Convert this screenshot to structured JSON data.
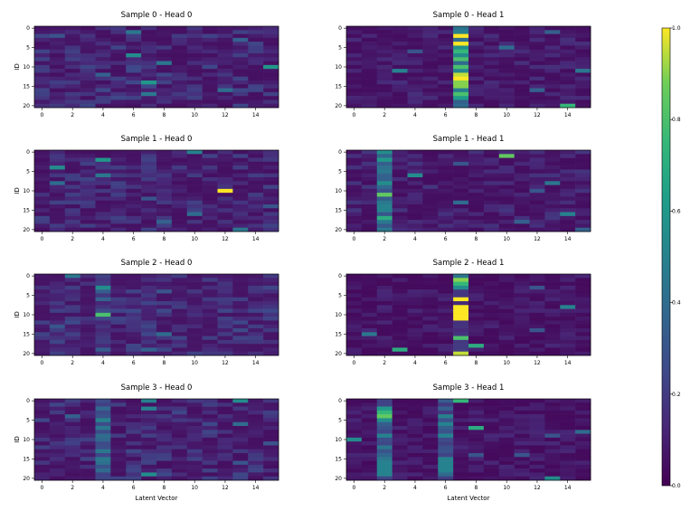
{
  "chart_data": {
    "type": "heatmap",
    "colormap": "viridis",
    "rows": 21,
    "cols": 16,
    "x_ticks": [
      0,
      2,
      4,
      6,
      8,
      10,
      12,
      14
    ],
    "y_ticks": [
      0,
      5,
      10,
      15,
      20
    ],
    "x_label": "Latent Vector",
    "y_label": "ID",
    "colorbar": {
      "min": 0.0,
      "max": 1.0,
      "ticks": [
        "0.0",
        "0.2",
        "0.4",
        "0.6",
        "0.8",
        "1.0"
      ]
    },
    "panels": [
      {
        "title": "Sample 0 - Head 0",
        "seed": 11,
        "base": 0.05,
        "noise": 0.2,
        "col_boost": {},
        "hot": [
          [
            1,
            6,
            0.45
          ],
          [
            3,
            13,
            0.35
          ],
          [
            7,
            6,
            0.55
          ],
          [
            9,
            8,
            0.45
          ],
          [
            10,
            15,
            0.6
          ],
          [
            14,
            7,
            0.6
          ],
          [
            17,
            7,
            0.45
          ],
          [
            16,
            12,
            0.4
          ],
          [
            2,
            1,
            0.3
          ],
          [
            12,
            4,
            0.35
          ]
        ]
      },
      {
        "title": "Sample 0 - Head 1",
        "seed": 23,
        "base": 0.04,
        "noise": 0.12,
        "col_boost": {
          "7": 0.55
        },
        "hot": [
          [
            2,
            7,
            1.0
          ],
          [
            4,
            7,
            1.0
          ],
          [
            6,
            7,
            0.75
          ],
          [
            8,
            7,
            0.8
          ],
          [
            10,
            7,
            0.8
          ],
          [
            12,
            7,
            0.95
          ],
          [
            13,
            7,
            1.0
          ],
          [
            14,
            7,
            0.9
          ],
          [
            15,
            7,
            0.9
          ],
          [
            17,
            7,
            0.8
          ],
          [
            20,
            14,
            0.75
          ],
          [
            11,
            3,
            0.5
          ],
          [
            1,
            13,
            0.35
          ],
          [
            5,
            10,
            0.4
          ],
          [
            11,
            15,
            0.45
          ],
          [
            16,
            12,
            0.35
          ],
          [
            6,
            4,
            0.3
          ]
        ]
      },
      {
        "title": "Sample 1 - Head 0",
        "seed": 37,
        "base": 0.05,
        "noise": 0.18,
        "col_boost": {},
        "hot": [
          [
            10,
            12,
            1.0
          ],
          [
            0,
            10,
            0.5
          ],
          [
            2,
            4,
            0.6
          ],
          [
            4,
            1,
            0.55
          ],
          [
            6,
            4,
            0.45
          ],
          [
            12,
            7,
            0.3
          ],
          [
            16,
            10,
            0.4
          ],
          [
            18,
            8,
            0.35
          ],
          [
            20,
            13,
            0.45
          ],
          [
            8,
            1,
            0.4
          ],
          [
            14,
            15,
            0.3
          ]
        ]
      },
      {
        "title": "Sample 1 - Head 1",
        "seed": 41,
        "base": 0.04,
        "noise": 0.14,
        "col_boost": {
          "2": 0.35
        },
        "hot": [
          [
            0,
            2,
            0.55
          ],
          [
            2,
            2,
            0.6
          ],
          [
            5,
            2,
            0.45
          ],
          [
            8,
            2,
            0.55
          ],
          [
            11,
            2,
            0.85
          ],
          [
            14,
            2,
            0.5
          ],
          [
            17,
            2,
            0.7
          ],
          [
            20,
            2,
            0.45
          ],
          [
            1,
            10,
            0.85
          ],
          [
            6,
            4,
            0.55
          ],
          [
            16,
            14,
            0.5
          ],
          [
            13,
            7,
            0.4
          ],
          [
            8,
            13,
            0.45
          ],
          [
            3,
            7,
            0.3
          ],
          [
            10,
            12,
            0.3
          ],
          [
            18,
            11,
            0.35
          ],
          [
            20,
            15,
            0.35
          ]
        ]
      },
      {
        "title": "Sample 2 - Head 0",
        "seed": 53,
        "base": 0.06,
        "noise": 0.2,
        "col_boost": {
          "4": 0.1
        },
        "hot": [
          [
            10,
            4,
            0.8
          ],
          [
            3,
            4,
            0.55
          ],
          [
            0,
            2,
            0.45
          ],
          [
            4,
            8,
            0.3
          ],
          [
            9,
            6,
            0.25
          ],
          [
            15,
            8,
            0.4
          ],
          [
            19,
            7,
            0.35
          ],
          [
            6,
            4,
            0.35
          ],
          [
            13,
            1,
            0.3
          ]
        ]
      },
      {
        "title": "Sample 2 - Head 1",
        "seed": 67,
        "base": 0.03,
        "noise": 0.1,
        "col_boost": {
          "7": 0.15
        },
        "hot": [
          [
            0,
            7,
            0.45
          ],
          [
            1,
            7,
            0.9
          ],
          [
            2,
            7,
            0.75
          ],
          [
            3,
            7,
            0.55
          ],
          [
            6,
            7,
            1.0
          ],
          [
            8,
            7,
            1.0
          ],
          [
            9,
            7,
            1.0
          ],
          [
            10,
            7,
            1.0
          ],
          [
            11,
            7,
            1.0
          ],
          [
            16,
            7,
            0.8
          ],
          [
            18,
            8,
            0.7
          ],
          [
            20,
            7,
            0.95
          ],
          [
            19,
            3,
            0.7
          ],
          [
            15,
            1,
            0.45
          ],
          [
            8,
            14,
            0.5
          ],
          [
            14,
            12,
            0.3
          ],
          [
            3,
            12,
            0.3
          ]
        ]
      },
      {
        "title": "Sample 3 - Head 0",
        "seed": 79,
        "base": 0.05,
        "noise": 0.2,
        "col_boost": {
          "4": 0.25
        },
        "hot": [
          [
            2,
            7,
            0.5
          ],
          [
            0,
            7,
            0.5
          ],
          [
            0,
            13,
            0.55
          ],
          [
            5,
            4,
            0.5
          ],
          [
            7,
            4,
            0.45
          ],
          [
            9,
            4,
            0.4
          ],
          [
            19,
            7,
            0.55
          ],
          [
            4,
            2,
            0.35
          ],
          [
            6,
            13,
            0.4
          ],
          [
            16,
            13,
            0.3
          ],
          [
            11,
            15,
            0.3
          ]
        ]
      },
      {
        "title": "Sample 3 - Head 1",
        "seed": 97,
        "base": 0.03,
        "noise": 0.1,
        "col_boost": {
          "2": 0.3,
          "6": 0.3
        },
        "hot": [
          [
            0,
            7,
            0.75
          ],
          [
            2,
            2,
            0.6
          ],
          [
            3,
            2,
            0.75
          ],
          [
            4,
            2,
            0.85
          ],
          [
            5,
            2,
            0.55
          ],
          [
            9,
            2,
            0.5
          ],
          [
            12,
            2,
            0.45
          ],
          [
            15,
            2,
            0.45
          ],
          [
            16,
            2,
            0.5
          ],
          [
            17,
            2,
            0.5
          ],
          [
            18,
            2,
            0.5
          ],
          [
            19,
            2,
            0.5
          ],
          [
            4,
            6,
            0.5
          ],
          [
            6,
            6,
            0.5
          ],
          [
            9,
            6,
            0.5
          ],
          [
            15,
            6,
            0.5
          ],
          [
            16,
            6,
            0.5
          ],
          [
            17,
            6,
            0.5
          ],
          [
            18,
            6,
            0.5
          ],
          [
            7,
            8,
            0.7
          ],
          [
            10,
            0,
            0.55
          ],
          [
            14,
            8,
            0.3
          ],
          [
            14,
            11,
            0.3
          ],
          [
            8,
            15,
            0.4
          ],
          [
            20,
            13,
            0.55
          ],
          [
            9,
            13,
            0.3
          ]
        ]
      }
    ]
  }
}
